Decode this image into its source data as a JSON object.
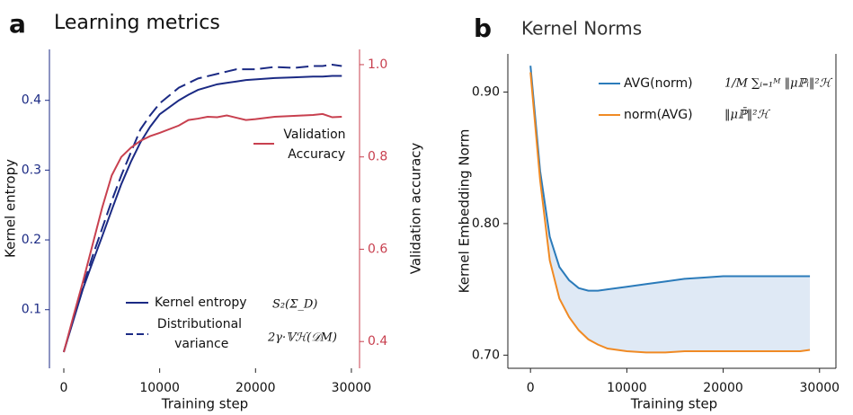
{
  "chart_data": [
    {
      "type": "line",
      "panel_label": "a",
      "title": "Learning metrics",
      "x_label": "Training step",
      "y_label": "Kernel entropy",
      "y2_label": "Validation accuracy",
      "x": [
        0,
        1000,
        2000,
        3000,
        4000,
        5000,
        6000,
        7000,
        8000,
        9000,
        10000,
        12000,
        13000,
        14000,
        15000,
        16000,
        17000,
        18000,
        19000,
        20000,
        22000,
        24000,
        26000,
        27000,
        28000,
        29000
      ],
      "series": [
        {
          "name": "Kernel entropy",
          "color": "#1b2a84",
          "dash": false,
          "values": [
            0.04,
            0.085,
            0.13,
            0.168,
            0.205,
            0.243,
            0.28,
            0.312,
            0.34,
            0.362,
            0.38,
            0.4,
            0.408,
            0.415,
            0.419,
            0.423,
            0.425,
            0.427,
            0.429,
            0.43,
            0.432,
            0.433,
            0.434,
            0.434,
            0.435,
            0.435
          ]
        },
        {
          "name": "Distributional variance",
          "color": "#1b2a84",
          "dash": true,
          "axis": "y2",
          "values": [
            0.377,
            0.45,
            0.52,
            0.585,
            0.645,
            0.705,
            0.76,
            0.81,
            0.86,
            0.89,
            0.916,
            0.95,
            0.96,
            0.97,
            0.975,
            0.98,
            0.985,
            0.99,
            0.99,
            0.99,
            0.995,
            0.993,
            0.997,
            0.997,
            1.0,
            0.997
          ]
        },
        {
          "name": "Validation Accuracy",
          "color": "#c8404f",
          "dash": false,
          "axis": "y2",
          "values": [
            0.377,
            0.455,
            0.53,
            0.61,
            0.69,
            0.76,
            0.8,
            0.82,
            0.835,
            0.845,
            0.852,
            0.868,
            0.88,
            0.883,
            0.887,
            0.886,
            0.89,
            0.885,
            0.88,
            0.882,
            0.887,
            0.889,
            0.891,
            0.893,
            0.886,
            0.887
          ]
        }
      ],
      "annotations": [
        "S₂(Σ_D)",
        "2γ·𝕍ℋ(𝒟M)"
      ],
      "xlim": [
        -1500,
        30850
      ],
      "xticks": [
        0,
        10000,
        20000,
        30000
      ],
      "ylim": [
        0.016,
        0.473
      ],
      "yticks": [
        0.1,
        0.2,
        0.3,
        0.4
      ],
      "y_color": "#1b2a84",
      "y2lim": [
        0.342,
        1.033
      ],
      "y2ticks": [
        0.4,
        0.6,
        0.8,
        {
          "value": 1,
          "label": "1.0"
        }
      ],
      "y2_color": "#c8404f"
    },
    {
      "type": "line",
      "panel_label": "b",
      "title": "Kernel Norms",
      "x_label": "Training step",
      "y_label": "Kernel Embedding Norm",
      "x": [
        0,
        1000,
        2000,
        3000,
        4000,
        5000,
        6000,
        7000,
        8000,
        10000,
        12000,
        14000,
        16000,
        18000,
        20000,
        22000,
        24000,
        26000,
        28000,
        29000
      ],
      "series": [
        {
          "name": "AVG(norm)",
          "color": "#2b7bba",
          "dash": false,
          "values": [
            0.92,
            0.84,
            0.79,
            0.767,
            0.757,
            0.751,
            0.749,
            0.749,
            0.75,
            0.752,
            0.754,
            0.756,
            0.758,
            0.759,
            0.76,
            0.76,
            0.76,
            0.76,
            0.76,
            0.76
          ]
        },
        {
          "name": "norm(AVG)",
          "color": "#f08a24",
          "dash": false,
          "values": [
            0.915,
            0.833,
            0.772,
            0.743,
            0.729,
            0.719,
            0.712,
            0.708,
            0.705,
            0.703,
            0.702,
            0.702,
            0.703,
            0.703,
            0.703,
            0.703,
            0.703,
            0.703,
            0.703,
            0.704
          ]
        }
      ],
      "annotations": [
        "1/M ∑ᵢ₌₁ᴹ ‖μℙᵢ‖²ℋ",
        "‖μℙ̄‖²ℋ"
      ],
      "fill_between": true,
      "fill_color": "#dfe9f5",
      "xlim": [
        -2350,
        31700
      ],
      "xticks": [
        0,
        10000,
        20000,
        30000
      ],
      "ylim": [
        0.69,
        0.929
      ],
      "yticks": [
        {
          "value": 0.7,
          "label": "0.70"
        },
        {
          "value": 0.8,
          "label": "0.80"
        },
        {
          "value": 0.9,
          "label": "0.90"
        }
      ]
    }
  ]
}
